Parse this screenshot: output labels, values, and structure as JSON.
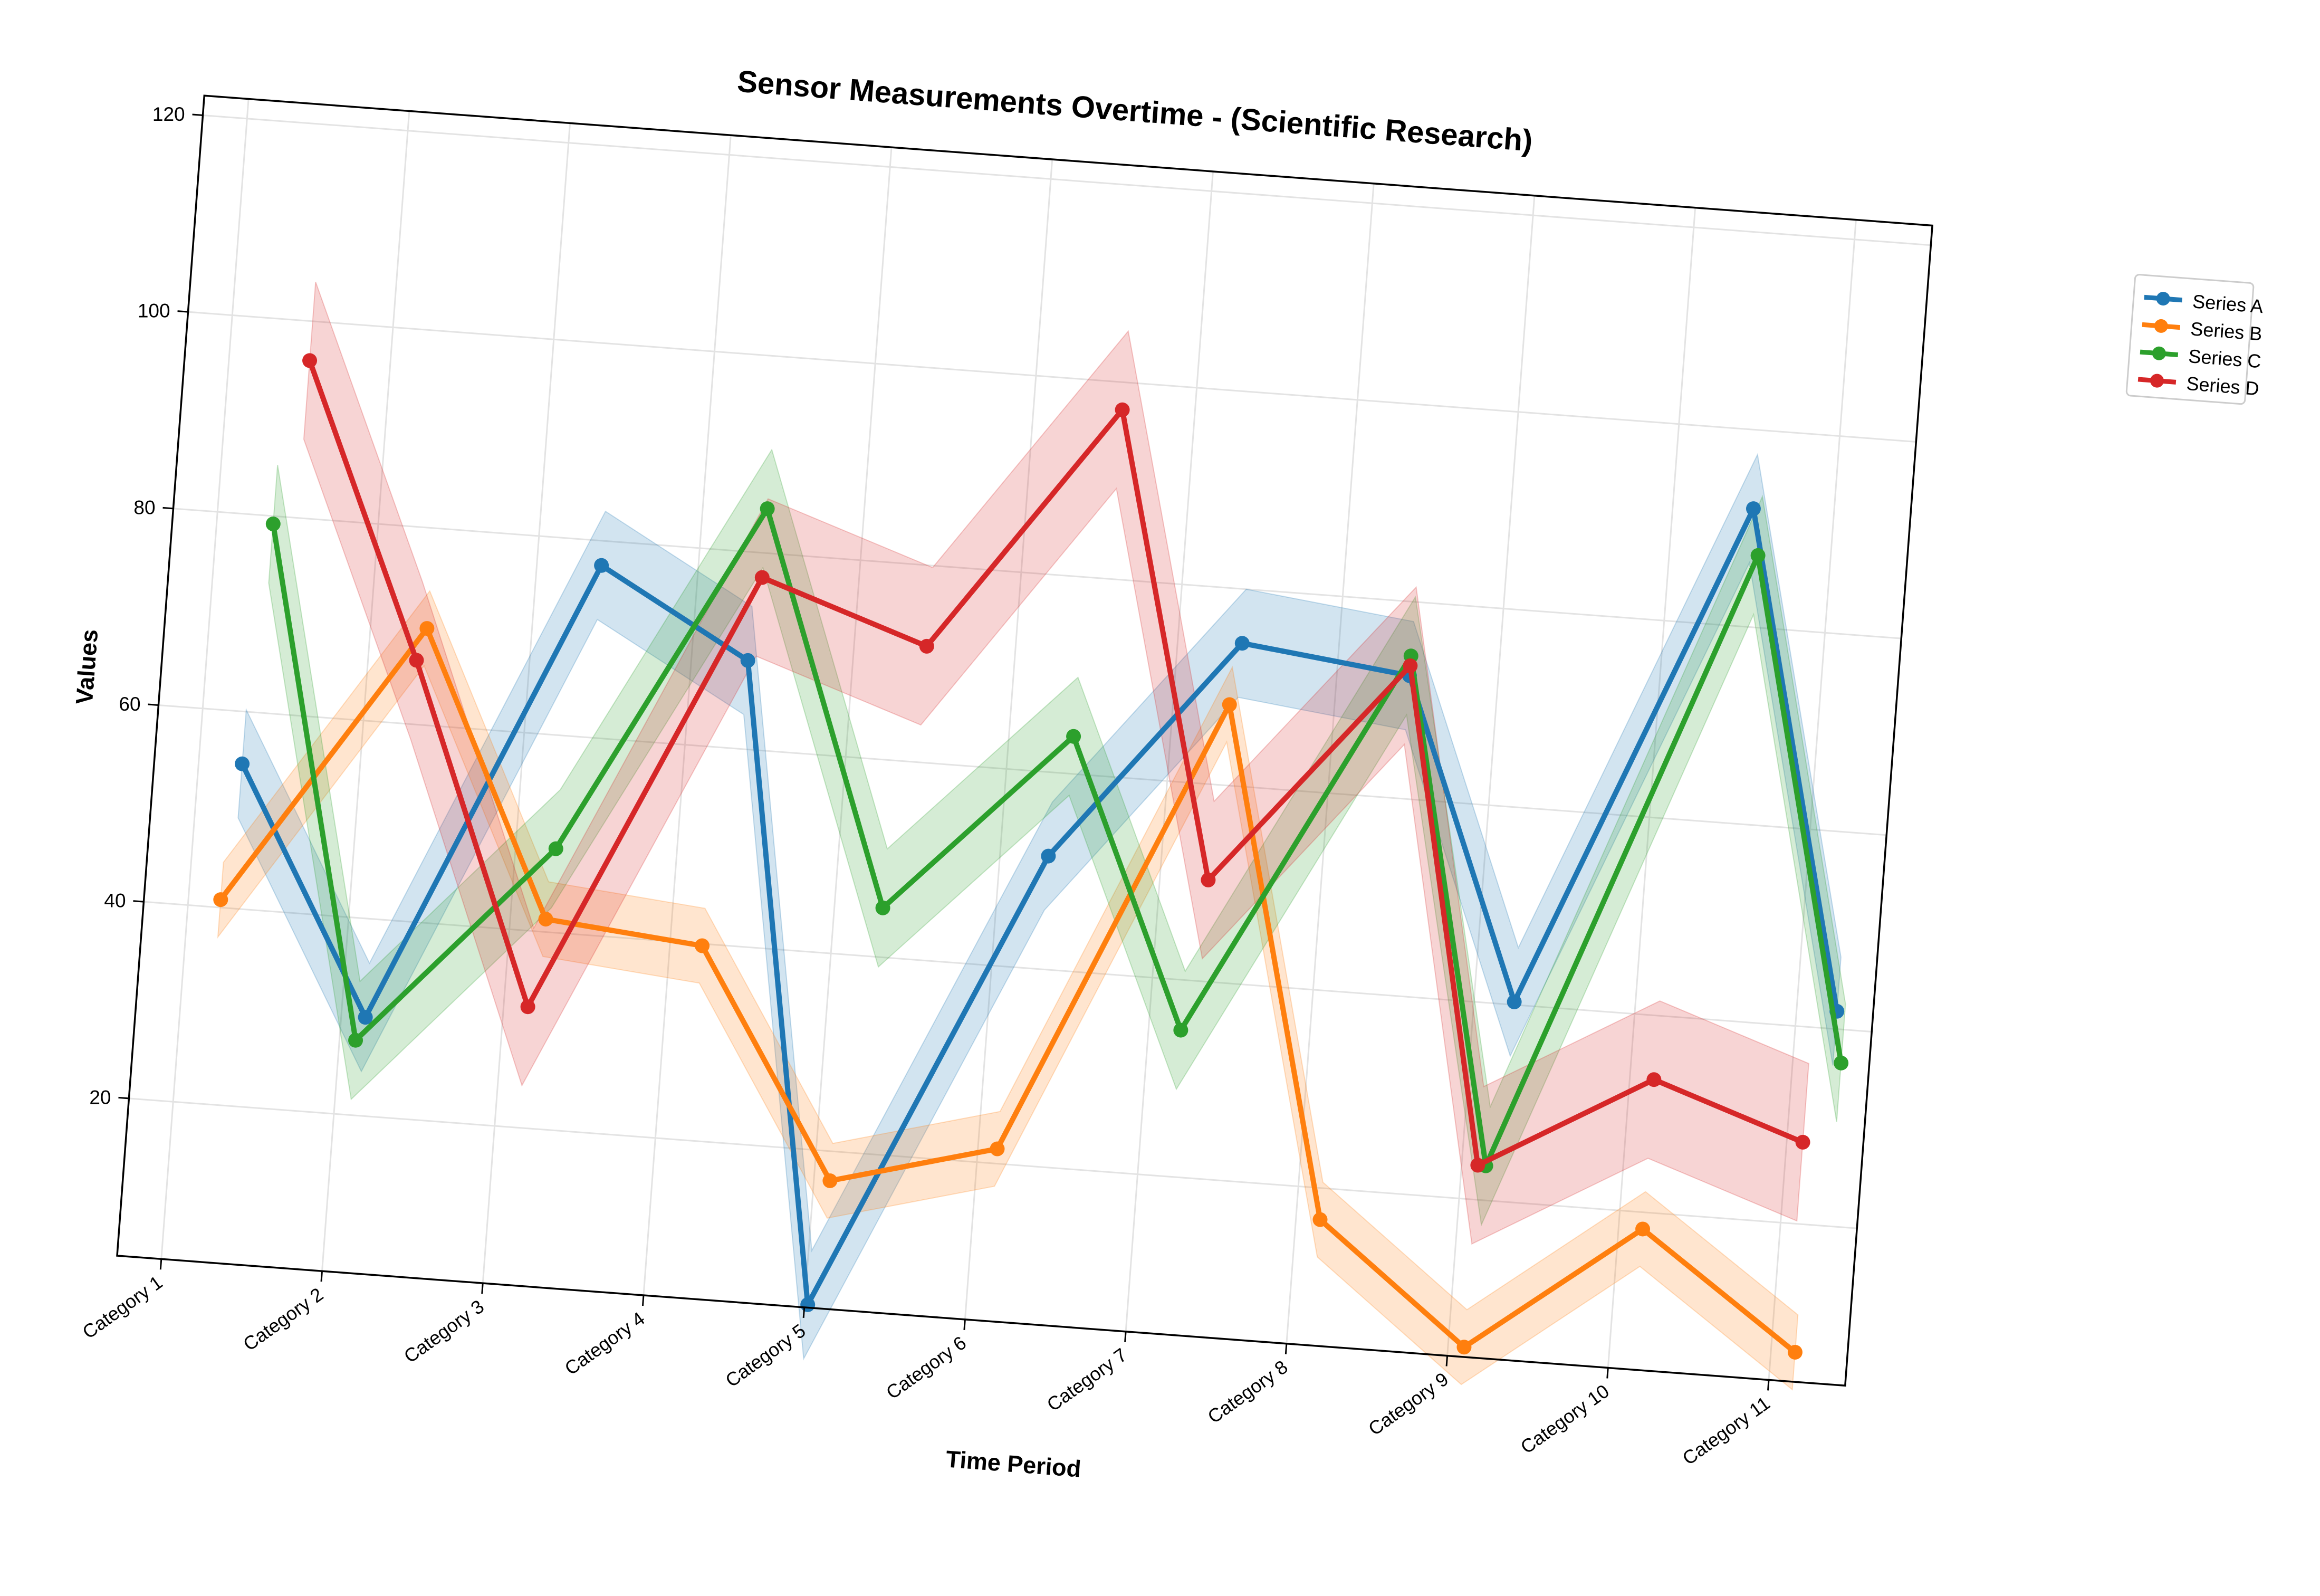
{
  "chart_data": {
    "type": "line",
    "title": "Sensor Measurements Overtime - (Scientific Research)",
    "xlabel": "Time Period",
    "ylabel": "Values",
    "categories": [
      "Category 1",
      "Category 2",
      "Category 3",
      "Category 4",
      "Category 5",
      "Category 6",
      "Category 7",
      "Category 8",
      "Category 9",
      "Category 10",
      "Category 11"
    ],
    "yticks": [
      20,
      40,
      60,
      80,
      100,
      120
    ],
    "ylim": [
      4,
      122
    ],
    "grid": true,
    "legend_position": "upper-right-outside",
    "series": [
      {
        "name": "Series A",
        "color": "#1f77b4",
        "x": [
          0.27,
          1.15,
          2.4,
          3.35,
          4.02,
          5.3,
          6.4,
          7.45,
          8.25,
          9.5,
          10.25
        ],
        "values": [
          54.7,
          30.0,
          77.5,
          69.0,
          4.3,
          51.5,
          74.5,
          72.5,
          40.3,
          92.0,
          41.8
        ],
        "band": 5.5
      },
      {
        "name": "Series B",
        "color": "#ff7f0e",
        "x": [
          0.2,
          1.35,
          2.22,
          3.2,
          4.1,
          5.12,
          6.35,
          7.15,
          8.1,
          9.15,
          10.15
        ],
        "values": [
          40.8,
          69.8,
          41.3,
          39.8,
          17.0,
          21.5,
          68.2,
          16.8,
          5.0,
          18.3,
          7.0
        ],
        "band": 3.8
      },
      {
        "name": "Series C",
        "color": "#2ca02c",
        "x": [
          0.35,
          1.1,
          2.25,
          3.4,
          4.3,
          5.4,
          6.2,
          7.45,
          8.15,
          9.55,
          10.3
        ],
        "values": [
          79.2,
          27.6,
          48.5,
          84.5,
          45.0,
          63.8,
          34.9,
          74.5,
          23.5,
          87.3,
          36.6
        ],
        "band": 6.0
      },
      {
        "name": "Series D",
        "color": "#d62728",
        "x": [
          0.5,
          1.3,
          2.15,
          3.4,
          4.45,
          5.55,
          6.3,
          7.45,
          8.1,
          9.15,
          10.1
        ],
        "values": [
          96.0,
          66.5,
          32.3,
          77.5,
          71.8,
          97.2,
          50.3,
          73.5,
          23.5,
          33.5,
          28.3
        ],
        "band": 8.0
      }
    ]
  }
}
